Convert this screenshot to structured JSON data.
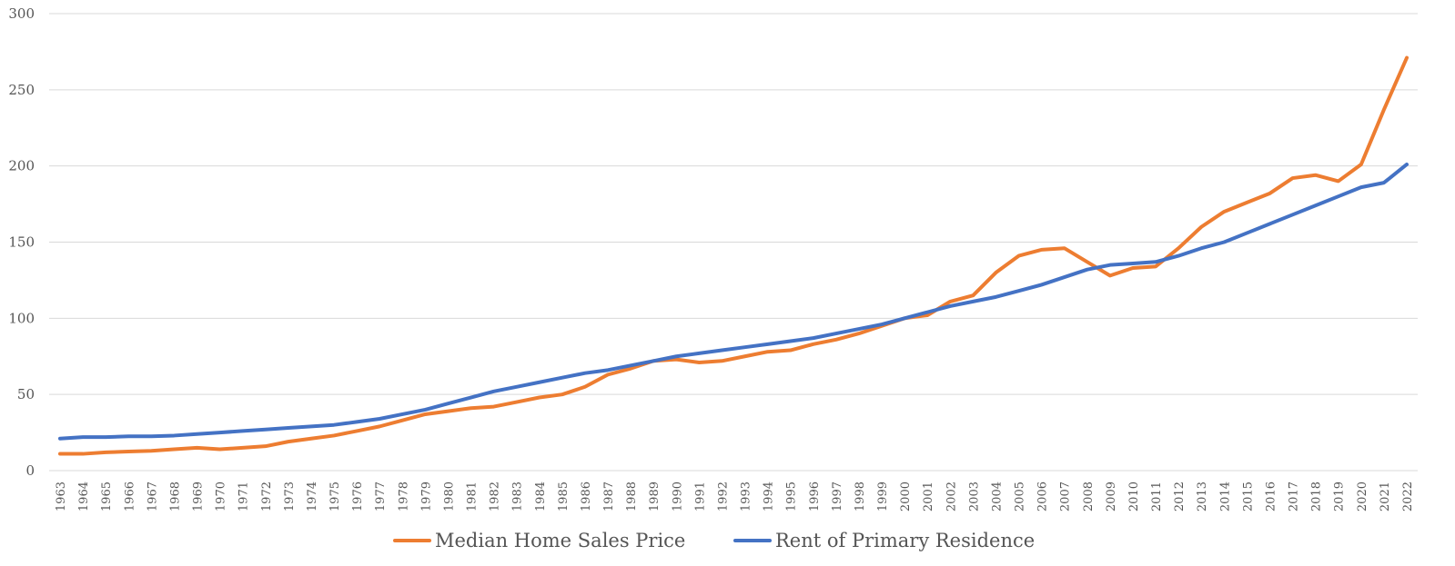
{
  "chart_data": {
    "type": "line",
    "title": "",
    "xlabel": "",
    "ylabel": "",
    "ylim": [
      0,
      300
    ],
    "yticks": [
      0,
      50,
      100,
      150,
      200,
      250,
      300
    ],
    "grid": "horizontal",
    "legend_position": "bottom",
    "x": [
      1963,
      1964,
      1965,
      1966,
      1967,
      1968,
      1969,
      1970,
      1971,
      1972,
      1973,
      1974,
      1975,
      1976,
      1977,
      1978,
      1979,
      1980,
      1981,
      1982,
      1983,
      1984,
      1985,
      1986,
      1987,
      1988,
      1989,
      1990,
      1991,
      1992,
      1993,
      1994,
      1995,
      1996,
      1997,
      1998,
      1999,
      2000,
      2001,
      2002,
      2003,
      2004,
      2005,
      2006,
      2007,
      2008,
      2009,
      2010,
      2011,
      2012,
      2013,
      2014,
      2015,
      2016,
      2017,
      2018,
      2019,
      2020,
      2021,
      2022
    ],
    "series": [
      {
        "name": "Median Home Sales Price",
        "color": "#ED7D31",
        "values": [
          11,
          11,
          12,
          12.5,
          13,
          14,
          15,
          14,
          15,
          16,
          19,
          21,
          23,
          26,
          29,
          33,
          37,
          39,
          41,
          42,
          45,
          48,
          50,
          55,
          63,
          67,
          72,
          73,
          71,
          72,
          75,
          78,
          79,
          83,
          86,
          90,
          95,
          100,
          102,
          111,
          115,
          130,
          141,
          145,
          146,
          137,
          128,
          133,
          134,
          146,
          160,
          170,
          176,
          182,
          192,
          194,
          190,
          201,
          237,
          271
        ]
      },
      {
        "name": "Rent of Primary Residence",
        "color": "#4472C4",
        "values": [
          21,
          22,
          22,
          22.5,
          22.5,
          23,
          24,
          25,
          26,
          27,
          28,
          29,
          30,
          32,
          34,
          37,
          40,
          44,
          48,
          52,
          55,
          58,
          61,
          64,
          66,
          69,
          72,
          75,
          77,
          79,
          81,
          83,
          85,
          87,
          90,
          93,
          96,
          100,
          104,
          108,
          111,
          114,
          118,
          122,
          127,
          132,
          135,
          136,
          137,
          141,
          146,
          150,
          156,
          162,
          168,
          174,
          180,
          186,
          189,
          201
        ]
      }
    ]
  }
}
